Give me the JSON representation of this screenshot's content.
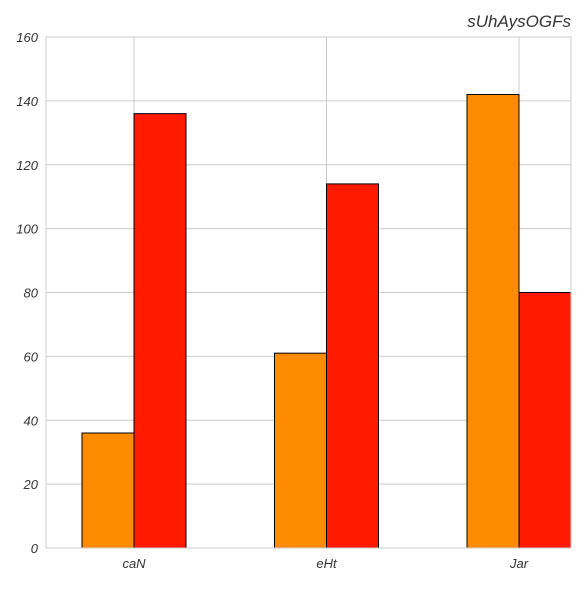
{
  "chart_data": {
    "type": "bar",
    "title": "sUhAysOGFs",
    "xlabel": "",
    "ylabel": "",
    "categories": [
      "caN",
      "eHt",
      "Jar"
    ],
    "series": [
      {
        "values": [
          36,
          61,
          142
        ],
        "color": "#ff8c00"
      },
      {
        "values": [
          136,
          114,
          80
        ],
        "color": "#ff1a00"
      }
    ],
    "ylim": [
      0,
      160
    ],
    "yticks": [
      0,
      20,
      40,
      60,
      80,
      100,
      120,
      140,
      160
    ],
    "grid": true,
    "legend": "none"
  }
}
